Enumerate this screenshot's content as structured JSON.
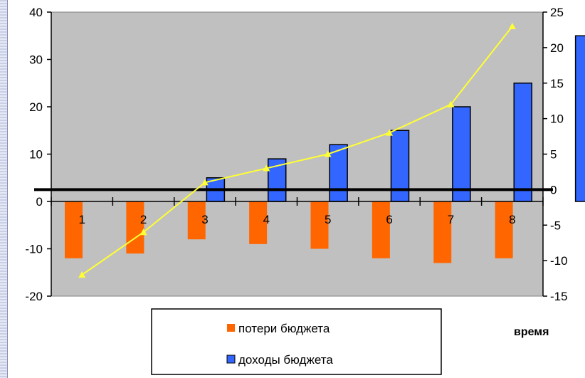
{
  "chart_data": {
    "type": "bar",
    "categories": [
      "1",
      "2",
      "3",
      "4",
      "5",
      "6",
      "7",
      "8"
    ],
    "series": [
      {
        "name": "потери бюджета",
        "type": "bar",
        "axis": "left",
        "color": "#ff6600",
        "values": [
          -12,
          -11,
          -8,
          -9,
          -10,
          -12,
          -13,
          -12
        ]
      },
      {
        "name": "доходы бюджета",
        "type": "bar",
        "axis": "left",
        "color": "#3366ff",
        "values": [
          0,
          5,
          9,
          12,
          15,
          20,
          25,
          35
        ]
      },
      {
        "type": "line",
        "axis": "right",
        "color": "#ffff33",
        "values": [
          -12,
          -6,
          1,
          3,
          5,
          8,
          12,
          23
        ]
      }
    ],
    "y_left": {
      "min": -20,
      "max": 40,
      "ticks": [
        -20,
        -10,
        0,
        10,
        20,
        30,
        40
      ]
    },
    "y_right": {
      "min": -15,
      "max": 25,
      "ticks": [
        -15,
        -10,
        -5,
        0,
        5,
        10,
        15,
        20,
        25
      ]
    },
    "xlabel": "время",
    "legend_position": "bottom",
    "plot_background": "#c0c0c0",
    "grid": false
  }
}
